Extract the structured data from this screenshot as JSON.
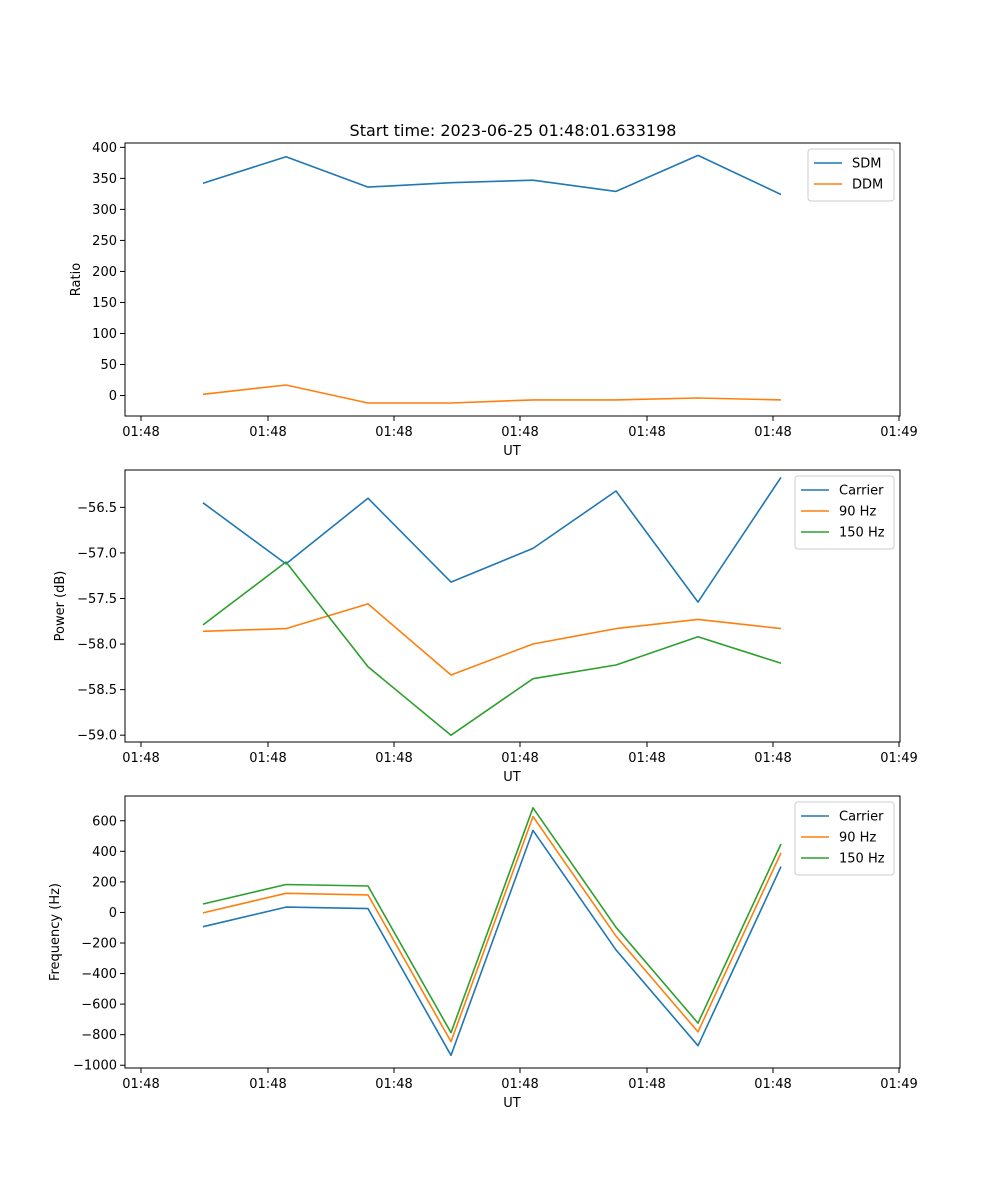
{
  "figure_title": "Start time: 2023-06-25 01:48:01.633198",
  "chart_data": [
    {
      "type": "line",
      "title": "Start time: 2023-06-25 01:48:01.633198",
      "xlabel": "UT",
      "ylabel": "Ratio",
      "x_tick_labels": [
        "01:48",
        "01:48",
        "01:48",
        "01:48",
        "01:48",
        "01:48",
        "01:48",
        "01:49"
      ],
      "y_ticks": [
        0,
        50,
        100,
        150,
        200,
        250,
        300,
        350,
        400
      ],
      "y_tick_labels": [
        "0",
        "50",
        "100",
        "150",
        "200",
        "250",
        "300",
        "350",
        "400"
      ],
      "ylim": [
        -33,
        407
      ],
      "legend_position": "top-right",
      "series": [
        {
          "name": "SDM",
          "color": "#1f77b4",
          "values": [
            342,
            385,
            336,
            343,
            347,
            329,
            387,
            324
          ]
        },
        {
          "name": "DDM",
          "color": "#ff7f0e",
          "values": [
            2,
            17,
            -12,
            -12,
            -7,
            -7,
            -4,
            -7
          ]
        }
      ]
    },
    {
      "type": "line",
      "xlabel": "UT",
      "ylabel": "Power (dB)",
      "x_tick_labels": [
        "01:48",
        "01:48",
        "01:48",
        "01:48",
        "01:48",
        "01:48",
        "01:48",
        "01:49"
      ],
      "y_ticks": [
        -59.0,
        -58.5,
        -58.0,
        -57.5,
        -57.0,
        -56.5
      ],
      "y_tick_labels": [
        "−59.0",
        "−58.5",
        "−58.0",
        "−57.5",
        "−57.0",
        "−56.5"
      ],
      "ylim": [
        -59.075,
        -56.09
      ],
      "legend_position": "top-right",
      "series": [
        {
          "name": "Carrier",
          "color": "#1f77b4",
          "values": [
            -56.45,
            -57.12,
            -56.4,
            -57.32,
            -56.95,
            -56.32,
            -57.54,
            -56.17
          ]
        },
        {
          "name": "90 Hz",
          "color": "#ff7f0e",
          "values": [
            -57.86,
            -57.83,
            -57.56,
            -58.34,
            -58.0,
            -57.83,
            -57.73,
            -57.83
          ]
        },
        {
          "name": "150 Hz",
          "color": "#2ca02c",
          "values": [
            -57.79,
            -57.1,
            -58.25,
            -59.0,
            -58.38,
            -58.23,
            -57.92,
            -58.21
          ]
        }
      ]
    },
    {
      "type": "line",
      "xlabel": "UT",
      "ylabel": "Frequency (Hz)",
      "x_tick_labels": [
        "01:48",
        "01:48",
        "01:48",
        "01:48",
        "01:48",
        "01:48",
        "01:48",
        "01:49"
      ],
      "y_ticks": [
        -1000,
        -800,
        -600,
        -400,
        -200,
        0,
        200,
        400,
        600
      ],
      "y_tick_labels": [
        "−1000",
        "−800",
        "−600",
        "−400",
        "−200",
        "0",
        "200",
        "400",
        "600"
      ],
      "ylim": [
        -1018,
        762
      ],
      "legend_position": "top-right",
      "series": [
        {
          "name": "Carrier",
          "color": "#1f77b4",
          "values": [
            -93,
            35,
            25,
            -935,
            537,
            -245,
            -872,
            300
          ]
        },
        {
          "name": "90 Hz",
          "color": "#ff7f0e",
          "values": [
            -3,
            125,
            115,
            -845,
            627,
            -155,
            -782,
            390
          ]
        },
        {
          "name": "150 Hz",
          "color": "#2ca02c",
          "values": [
            55,
            183,
            173,
            -787,
            685,
            -97,
            -724,
            448
          ]
        }
      ]
    }
  ]
}
